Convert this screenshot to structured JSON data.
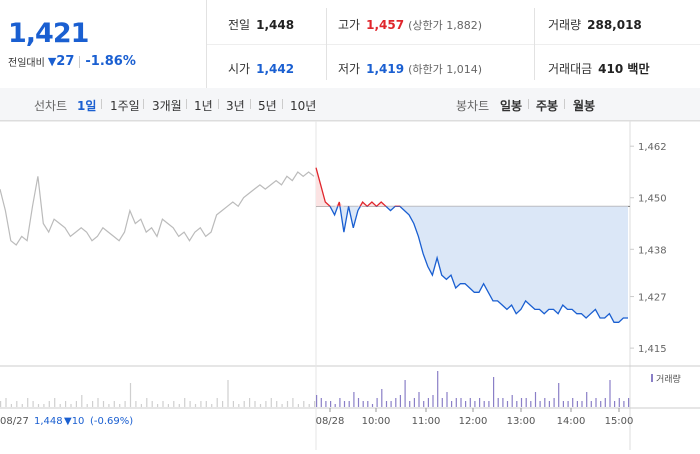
{
  "quote": {
    "price": "1,421",
    "change_label": "전일대비",
    "change_arrow": "▼",
    "change": "27",
    "change_pct": "-1.86%"
  },
  "stats": {
    "prev_close": {
      "label": "전일",
      "value": "1,448"
    },
    "high": {
      "label": "고가",
      "value": "1,457",
      "sub": "(상한가 1,882)"
    },
    "volume": {
      "label": "거래량",
      "value": "288,018"
    },
    "open": {
      "label": "시가",
      "value": "1,442"
    },
    "low": {
      "label": "저가",
      "value": "1,419",
      "sub": "(하한가 1,014)"
    },
    "amount": {
      "label": "거래대금",
      "value": "410 백만"
    }
  },
  "tabs": {
    "line_label": "선차트",
    "line_items": [
      "1일",
      "1주일",
      "3개월",
      "1년",
      "3년",
      "5년",
      "10년"
    ],
    "line_active": "1일",
    "candle_label": "봉차트",
    "candle_items": [
      "일봉",
      "주봉",
      "월봉"
    ]
  },
  "chart_data": {
    "type": "line",
    "y_ticks": [
      "1,462",
      "1,450",
      "1,438",
      "1,427",
      "1,415"
    ],
    "y_tick_values": [
      1462,
      1450,
      1438,
      1427,
      1415
    ],
    "ylim": [
      1412,
      1466
    ],
    "x_ticks": [
      "08/28",
      "10:00",
      "11:00",
      "12:00",
      "13:00",
      "14:00",
      "15:00"
    ],
    "prev_close": 1448,
    "volume_legend": "거래량",
    "prev_day_footer": {
      "date": "08/27",
      "close": "1,448",
      "change": "▼10",
      "pct": "(-0.69%)"
    },
    "colors": {
      "up": "#e0262c",
      "down": "#1a5fd1",
      "prev": "#bbbbbb",
      "fill": "#dbe7f7"
    },
    "prev_day_series": [
      1452,
      1447,
      1440,
      1439,
      1441,
      1440,
      1448,
      1455,
      1444,
      1442,
      1445,
      1444,
      1443,
      1441,
      1442,
      1443,
      1442,
      1440,
      1441,
      1443,
      1442,
      1441,
      1440,
      1442,
      1447,
      1444,
      1445,
      1442,
      1443,
      1441,
      1445,
      1444,
      1443,
      1441,
      1442,
      1440,
      1442,
      1443,
      1441,
      1442,
      1446,
      1447,
      1448,
      1449,
      1448,
      1450,
      1451,
      1452,
      1453,
      1452,
      1453,
      1454,
      1453,
      1455,
      1454,
      1456,
      1455,
      1456,
      1455
    ],
    "today_series": [
      1457,
      1453,
      1449,
      1448,
      1446,
      1449,
      1442,
      1448,
      1443,
      1447,
      1449,
      1448,
      1449,
      1448,
      1449,
      1448,
      1447,
      1448,
      1448,
      1447,
      1446,
      1444,
      1441,
      1437,
      1434,
      1432,
      1436,
      1432,
      1431,
      1432,
      1429,
      1430,
      1430,
      1429,
      1428,
      1428,
      1430,
      1428,
      1426,
      1426,
      1425,
      1424,
      1425,
      1423,
      1424,
      1426,
      1425,
      1424,
      1424,
      1423,
      1424,
      1424,
      1423,
      1425,
      1424,
      1424,
      1423,
      1423,
      1422,
      1423,
      1424,
      1422,
      1422,
      1423,
      1421,
      1421,
      1422,
      1422
    ],
    "prev_day_volume": [
      2,
      3,
      1,
      2,
      1,
      3,
      2,
      1,
      1,
      2,
      3,
      1,
      2,
      1,
      2,
      4,
      1,
      2,
      3,
      2,
      1,
      2,
      1,
      2,
      8,
      2,
      1,
      3,
      2,
      1,
      2,
      1,
      2,
      1,
      3,
      2,
      1,
      2,
      2,
      1,
      3,
      2,
      9,
      2,
      1,
      2,
      3,
      2,
      1,
      2,
      3,
      2,
      1,
      2,
      3,
      1,
      2,
      1,
      2
    ],
    "today_volume": [
      4,
      3,
      2,
      2,
      1,
      3,
      2,
      2,
      5,
      3,
      2,
      2,
      1,
      3,
      6,
      2,
      2,
      3,
      4,
      9,
      2,
      3,
      5,
      2,
      3,
      4,
      12,
      3,
      5,
      2,
      3,
      3,
      2,
      3,
      2,
      3,
      2,
      2,
      10,
      3,
      3,
      2,
      4,
      2,
      3,
      3,
      2,
      5,
      2,
      3,
      2,
      3,
      8,
      2,
      2,
      3,
      2,
      2,
      5,
      2,
      3,
      2,
      3,
      9,
      2,
      3,
      2,
      3
    ]
  }
}
